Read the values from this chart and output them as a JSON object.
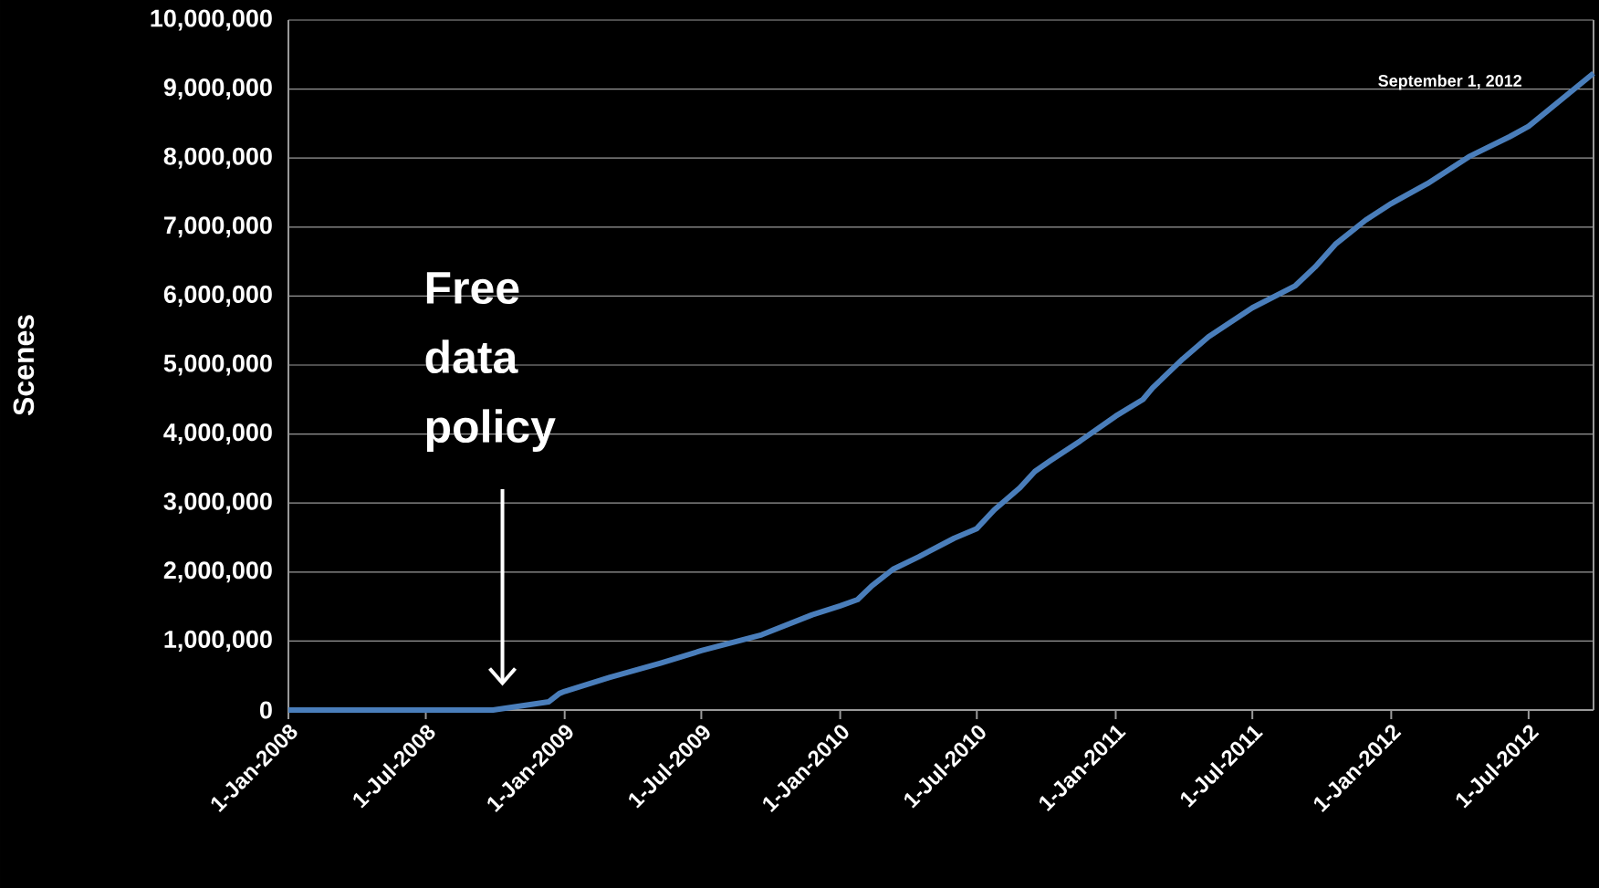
{
  "chart_data": {
    "type": "line",
    "ylabel": "Scenes",
    "annotations": [
      "Free data policy",
      "September 1, 2012"
    ],
    "x": [
      "2008-01-01",
      "2008-09-28",
      "2008-12-11",
      "2008-12-25",
      "2009-01-01",
      "2009-03-01",
      "2009-05-08",
      "2009-07-01",
      "2009-09-19",
      "2009-11-25",
      "2010-01-01",
      "2010-01-24",
      "2010-02-12",
      "2010-03-12",
      "2010-04-15",
      "2010-06-01",
      "2010-07-01",
      "2010-07-24",
      "2010-08-27",
      "2010-09-16",
      "2010-10-06",
      "2010-11-15",
      "2011-01-01",
      "2011-02-06",
      "2011-02-19",
      "2011-03-31",
      "2011-05-04",
      "2011-07-01",
      "2011-08-27",
      "2011-09-22",
      "2011-10-19",
      "2011-11-28",
      "2012-01-01",
      "2012-02-18",
      "2012-04-13",
      "2012-06-06",
      "2012-07-01",
      "2012-09-25"
    ],
    "series": [
      {
        "color": "#4a7ebb",
        "values": [
          0,
          0,
          120000,
          240000,
          270000,
          470000,
          680000,
          860000,
          1090000,
          1380000,
          1510000,
          1600000,
          1800000,
          2040000,
          2220000,
          2490000,
          2630000,
          2900000,
          3220000,
          3460000,
          3610000,
          3900000,
          4260000,
          4500000,
          4670000,
          5090000,
          5410000,
          5830000,
          6150000,
          6420000,
          6750000,
          7100000,
          7340000,
          7630000,
          8020000,
          8310000,
          8460000,
          9230000
        ]
      }
    ],
    "xlim": [
      "2008-01-01",
      "2012-09-25"
    ],
    "xticks": [
      {
        "value": "2008-01-01",
        "label": "1-Jan-2008"
      },
      {
        "value": "2008-07-01",
        "label": "1-Jul-2008"
      },
      {
        "value": "2009-01-01",
        "label": "1-Jan-2009"
      },
      {
        "value": "2009-07-01",
        "label": "1-Jul-2009"
      },
      {
        "value": "2010-01-01",
        "label": "1-Jan-2010"
      },
      {
        "value": "2010-07-01",
        "label": "1-Jul-2010"
      },
      {
        "value": "2011-01-01",
        "label": "1-Jan-2011"
      },
      {
        "value": "2011-07-01",
        "label": "1-Jul-2011"
      },
      {
        "value": "2012-01-01",
        "label": "1-Jan-2012"
      },
      {
        "value": "2012-07-01",
        "label": "1-Jul-2012"
      }
    ],
    "ylim": [
      0,
      10000000
    ],
    "yticks": [
      0,
      {
        "value": 1000000,
        "label": "1,000,000"
      },
      {
        "value": 2000000,
        "label": "2,000,000"
      },
      {
        "value": 3000000,
        "label": "3,000,000"
      },
      {
        "value": 4000000,
        "label": "4,000,000"
      },
      {
        "value": 5000000,
        "label": "5,000,000"
      },
      {
        "value": 6000000,
        "label": "6,000,000"
      },
      {
        "value": 7000000,
        "label": "7,000,000"
      },
      {
        "value": 8000000,
        "label": "8,000,000"
      },
      {
        "value": 9000000,
        "label": "9,000,000"
      },
      {
        "value": 10000000,
        "label": "10,000,000"
      }
    ],
    "grid": "y",
    "marker": "none",
    "line_style": "solid"
  }
}
